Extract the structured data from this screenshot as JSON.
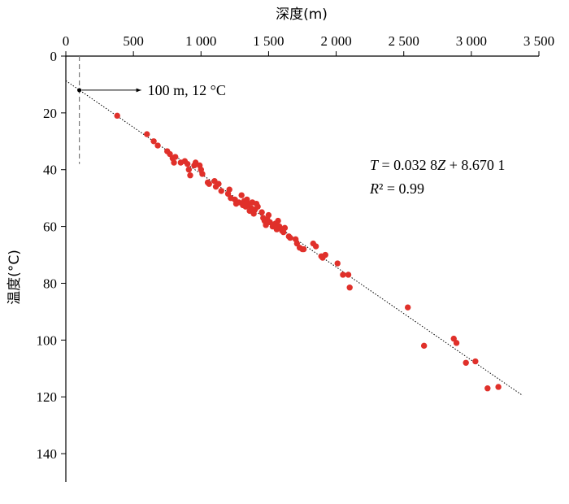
{
  "chart_data": {
    "type": "scatter",
    "xlabel": "深度(m)",
    "ylabel": "温度(°C)",
    "xlim": [
      0,
      3500
    ],
    "ylim": [
      0,
      150
    ],
    "x_ticks": [
      0,
      500,
      1000,
      1500,
      2000,
      2500,
      3000,
      3500
    ],
    "x_tick_labels": [
      "0",
      "500",
      "1 000",
      "1 500",
      "2 000",
      "2 500",
      "3 000",
      "3 500"
    ],
    "y_ticks": [
      0,
      20,
      40,
      60,
      80,
      100,
      120,
      140
    ],
    "y_tick_labels": [
      "0",
      "20",
      "40",
      "60",
      "80",
      "100",
      "120",
      "140"
    ],
    "x_axis_position": "top",
    "y_axis_inverted": true,
    "grid": false,
    "point_color": "#e0302a",
    "reference_line": {
      "x": 100,
      "y_from": 0,
      "y_to": 38,
      "style": "dashed",
      "color": "#777777"
    },
    "reference_point": {
      "x": 100,
      "y": 12,
      "label": "100 m, 12 °C"
    },
    "fit": {
      "slope": 0.0328,
      "intercept": 8.6701,
      "x_range": [
        0,
        3380
      ],
      "style": "dotted"
    },
    "equation": {
      "T": "T",
      "eq_rest": " = 0.032 8",
      "Z": "Z",
      "eq_tail": " + 8.670 1",
      "R": "R",
      "r2_rest": "² = 0.99"
    },
    "points": [
      [
        380,
        21
      ],
      [
        600,
        27.5
      ],
      [
        650,
        30
      ],
      [
        680,
        31.5
      ],
      [
        750,
        33.5
      ],
      [
        770,
        34.5
      ],
      [
        790,
        36
      ],
      [
        800,
        37.5
      ],
      [
        810,
        35.5
      ],
      [
        850,
        37.5
      ],
      [
        880,
        37
      ],
      [
        900,
        38
      ],
      [
        910,
        40
      ],
      [
        920,
        42
      ],
      [
        950,
        38.5
      ],
      [
        960,
        37.5
      ],
      [
        990,
        38.5
      ],
      [
        1000,
        40
      ],
      [
        1010,
        41.5
      ],
      [
        1050,
        44.5
      ],
      [
        1060,
        45
      ],
      [
        1100,
        44
      ],
      [
        1110,
        46
      ],
      [
        1130,
        45
      ],
      [
        1150,
        47.5
      ],
      [
        1200,
        48.5
      ],
      [
        1210,
        47
      ],
      [
        1220,
        50
      ],
      [
        1250,
        50.5
      ],
      [
        1260,
        52
      ],
      [
        1280,
        51.5
      ],
      [
        1300,
        49
      ],
      [
        1310,
        52.5
      ],
      [
        1320,
        51
      ],
      [
        1330,
        53
      ],
      [
        1340,
        50.5
      ],
      [
        1350,
        52
      ],
      [
        1360,
        54.5
      ],
      [
        1370,
        53.5
      ],
      [
        1380,
        51.5
      ],
      [
        1390,
        55.5
      ],
      [
        1400,
        54
      ],
      [
        1410,
        52
      ],
      [
        1420,
        53
      ],
      [
        1450,
        55
      ],
      [
        1460,
        57
      ],
      [
        1470,
        58
      ],
      [
        1480,
        59.5
      ],
      [
        1490,
        57.5
      ],
      [
        1500,
        56
      ],
      [
        1510,
        58.5
      ],
      [
        1530,
        60
      ],
      [
        1550,
        59
      ],
      [
        1560,
        61
      ],
      [
        1570,
        58
      ],
      [
        1580,
        60
      ],
      [
        1600,
        61.5
      ],
      [
        1610,
        62
      ],
      [
        1620,
        60.5
      ],
      [
        1650,
        63.5
      ],
      [
        1660,
        64
      ],
      [
        1700,
        64.5
      ],
      [
        1710,
        66
      ],
      [
        1730,
        67.5
      ],
      [
        1750,
        68
      ],
      [
        1760,
        68
      ],
      [
        1830,
        66
      ],
      [
        1850,
        67
      ],
      [
        1890,
        70.5
      ],
      [
        1900,
        71
      ],
      [
        1920,
        70
      ],
      [
        2010,
        73
      ],
      [
        2050,
        77
      ],
      [
        2090,
        77
      ],
      [
        2100,
        81.5
      ],
      [
        2530,
        88.5
      ],
      [
        2650,
        102
      ],
      [
        2870,
        99.5
      ],
      [
        2890,
        101
      ],
      [
        2960,
        108
      ],
      [
        3030,
        107.5
      ],
      [
        3120,
        117
      ],
      [
        3200,
        116.5
      ]
    ]
  }
}
